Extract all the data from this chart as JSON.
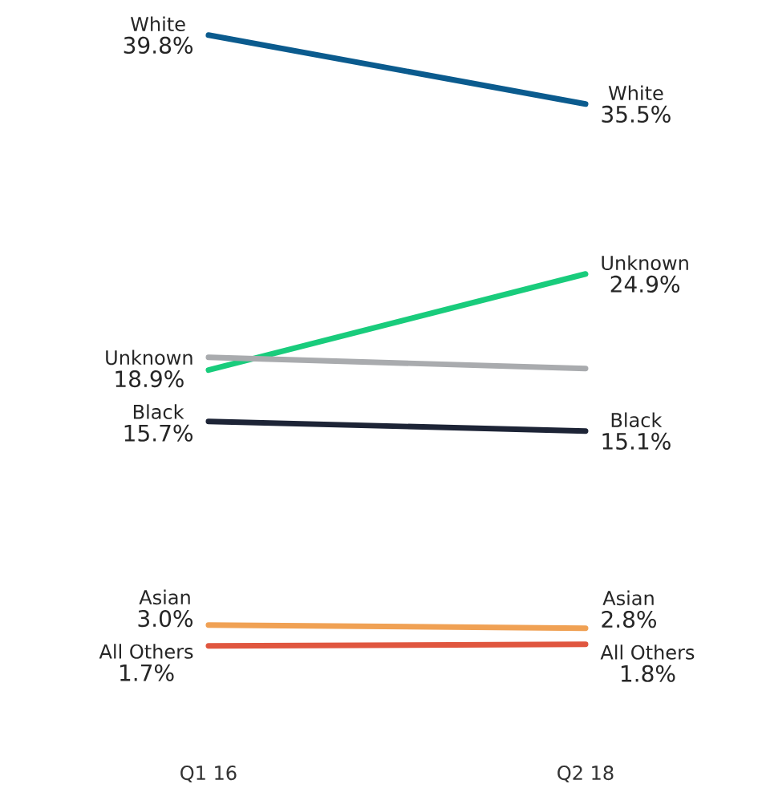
{
  "chart_data": {
    "type": "line",
    "categories": [
      "Q1 16",
      "Q2 18"
    ],
    "marker": "none",
    "legend": false,
    "series": [
      {
        "name": "White",
        "color": "#0b5b8e",
        "values": [
          39.8,
          35.5
        ],
        "value_labels": [
          "39.8%",
          "35.5%"
        ]
      },
      {
        "name": "Unknown",
        "color": "#19cc7c",
        "values": [
          18.9,
          24.9
        ],
        "value_labels": [
          "18.9%",
          "24.9%"
        ]
      },
      {
        "color": "#a9abae",
        "values": [
          19.7,
          19.0
        ]
      },
      {
        "name": "Black",
        "color": "#1d2436",
        "values": [
          15.7,
          15.1
        ],
        "value_labels": [
          "15.7%",
          "15.1%"
        ]
      },
      {
        "name": "Asian",
        "color": "#f0a154",
        "values": [
          3.0,
          2.8
        ],
        "value_labels": [
          "3.0%",
          "2.8%"
        ]
      },
      {
        "name": "All Others",
        "color": "#e0563f",
        "values": [
          1.7,
          1.8
        ],
        "value_labels": [
          "1.7%",
          "1.8%"
        ]
      }
    ]
  }
}
